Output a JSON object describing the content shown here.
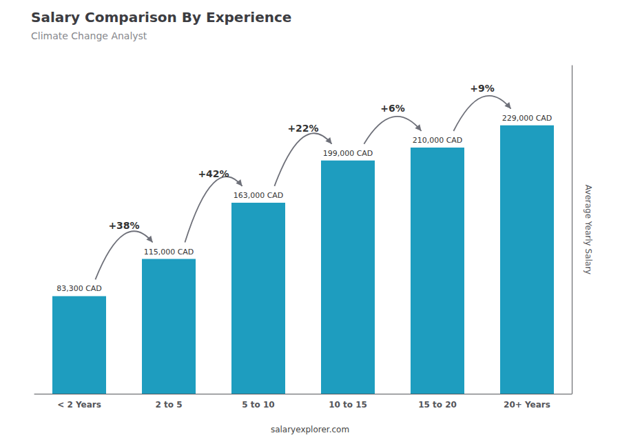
{
  "chart_data": {
    "type": "bar",
    "title": "Salary Comparison By Experience",
    "subtitle": "Climate Change Analyst",
    "categories": [
      "< 2 Years",
      "2 to 5",
      "5 to 10",
      "10 to 15",
      "15 to 20",
      "20+ Years"
    ],
    "values": [
      83300,
      115000,
      163000,
      199000,
      210000,
      229000
    ],
    "value_labels": [
      "83,300 CAD",
      "115,000 CAD",
      "163,000 CAD",
      "199,000 CAD",
      "210,000 CAD",
      "229,000 CAD"
    ],
    "data_labels": true,
    "annotations": [
      "+38%",
      "+42%",
      "+22%",
      "+6%",
      "+9%"
    ],
    "ylabel": "Average Yearly Salary",
    "footer": "salaryexplorer.com",
    "color": "#1e9dbf",
    "ylim": [
      0,
      280000
    ],
    "tick_labels": "x",
    "grid": false
  }
}
